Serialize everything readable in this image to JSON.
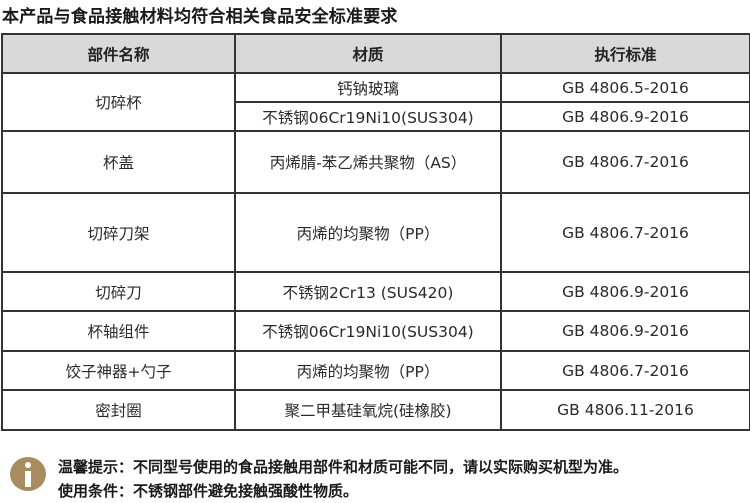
{
  "title": "本产品与食品接触材料均符合相关食品安全标准要求",
  "table": {
    "headers": [
      "部件名称",
      "材质",
      "执行标准"
    ],
    "rows": [
      {
        "part": "切碎杯",
        "materials": [
          {
            "material": "钙钠玻璃",
            "standard": "GB 4806.5-2016"
          },
          {
            "material": "不锈钢06Cr19Ni10(SUS304)",
            "standard": "GB 4806.9-2016"
          }
        ]
      },
      {
        "part": "杯盖",
        "material": "丙烯腈-苯乙烯共聚物（AS）",
        "standard": "GB 4806.7-2016"
      },
      {
        "part": "切碎刀架",
        "material": "丙烯的均聚物（PP）",
        "standard": "GB 4806.7-2016"
      },
      {
        "part": "切碎刀",
        "material": "不锈钢2Cr13 (SUS420)",
        "standard": "GB 4806.9-2016"
      },
      {
        "part": "杯轴组件",
        "material": "不锈钢06Cr19Ni10(SUS304)",
        "standard": "GB 4806.9-2016"
      },
      {
        "part": "饺子神器+勺子",
        "material": "丙烯的均聚物（PP）",
        "standard": "GB 4806.7-2016"
      },
      {
        "part": "密封圈",
        "material": "聚二甲基硅氧烷(硅橡胶)",
        "standard": "GB 4806.11-2016"
      }
    ]
  },
  "notes": {
    "icon": "info-icon",
    "icon_color": "#a98b60",
    "tip": "温馨提示：不同型号使用的食品接触用部件和材质可能不同，请以实际购买机型为准。",
    "condition": "使用条件：不锈钢部件避免接触强酸性物质。"
  }
}
